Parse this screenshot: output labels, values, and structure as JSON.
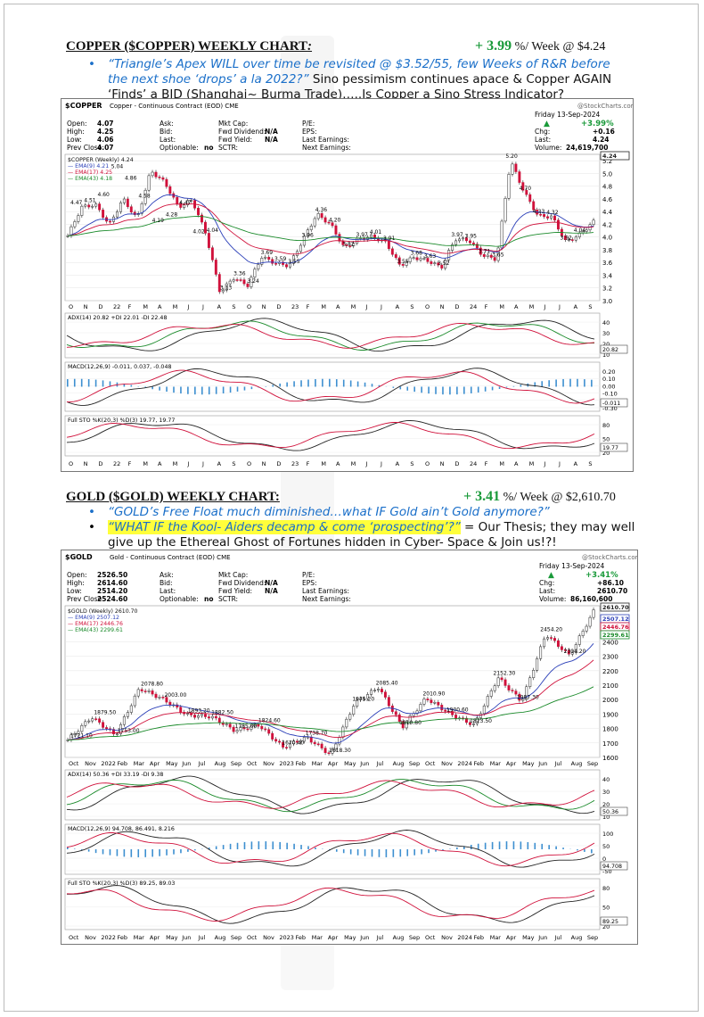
{
  "copper": {
    "heading": "COPPER ($COPPER) WEEKLY CHART",
    "heading_colon": ":",
    "perf_value": "+ 3.99",
    "perf_rest": " %/ Week @ $4.24",
    "bullet1_quote": "“Triangle’s Apex WILL over time be revisited @ $3.52/55, few Weeks of R&R before the next shoe ‘drops’ a la 2022?”",
    "bullet1_rest": "  Sino pessimism continues apace & Copper AGAIN ‘Finds’ a BID (Shanghai~ Burma Trade)…..Is Copper a Sino Stress Indicator?",
    "header": {
      "symbol": "$COPPER",
      "desc": "Copper - Continuous Contract (EOD)",
      "exchange": "CME",
      "brand": "@StockCharts.com",
      "date": "Friday   13-Sep-2024",
      "open_l": "Open:",
      "open_v": "4.07",
      "high_l": "High:",
      "high_v": "4.25",
      "low_l": "Low:",
      "low_v": "4.06",
      "prev_l": "Prev Close:",
      "prev_v": "4.07",
      "ask": "Ask:",
      "bid": "Bid:",
      "last": "Last:",
      "optionable": "Optionable:",
      "optionable_v": "no",
      "mktcap": "Mkt Cap:",
      "fwddiv": "Fwd Dividend:",
      "fwddiv_v": "N/A",
      "fwdyield": "Fwd Yield:",
      "fwdyield_v": "N/A",
      "sctr": "SCTR:",
      "pe": "P/E:",
      "eps": "EPS:",
      "lastearn": "Last Earnings:",
      "nextearn": "Next Earnings:",
      "pct": "+3.99%",
      "chg_l": "Chg:",
      "chg_v": "+0.16",
      "lastp_l": "Last:",
      "lastp_v": "4.24",
      "vol_l": "Volume:",
      "vol_v": "24,619,700"
    },
    "legend": [
      "$COPPER (Weekly) 4.24",
      "EMA(9) 4.21",
      "EMA(17) 4.25",
      "EMA(43) 4.18"
    ],
    "indicators": [
      {
        "label": "ADX(14) 20.82 +DI 22.01 -DI 22.48",
        "ticks": [
          "40",
          "30",
          "20",
          "10"
        ],
        "badge": "20.82"
      },
      {
        "label": "MACD(12,26,9) -0.011, 0.037, -0.048",
        "ticks": [
          "0.20",
          "0.10",
          "0.00",
          "-0.10",
          "-0.20",
          "-0.30"
        ],
        "badge": "-0.011"
      },
      {
        "label": "Full STO %K(20,3) %D(3) 19.77, 19.77",
        "ticks": [
          "80",
          "50",
          "20"
        ],
        "badge": "19.77"
      }
    ],
    "yticks": [
      "5.2",
      "5.0",
      "4.8",
      "4.6",
      "4.4",
      "4.2",
      "4.0",
      "3.8",
      "3.6",
      "3.4",
      "3.2",
      "3.0"
    ],
    "price_badge": "4.24",
    "xlabels": [
      "O",
      "N",
      "D",
      "22",
      "F",
      "M",
      "A",
      "M",
      "J",
      "J",
      "A",
      "S",
      "O",
      "N",
      "D",
      "23",
      "F",
      "M",
      "A",
      "M",
      "J",
      "J",
      "A",
      "S",
      "O",
      "N",
      "D",
      "24",
      "F",
      "M",
      "A",
      "M",
      "J",
      "J",
      "A",
      "S"
    ],
    "annotations": [
      "4.47",
      "4.51",
      "4.60",
      "5.04",
      "4.86",
      "4.58",
      "4.19",
      "4.28",
      "4.47",
      "4.02",
      "4.04",
      "3.13",
      "3.36",
      "3.24",
      "3.69",
      "3.59",
      "3.55",
      "3.96",
      "4.36",
      "4.20",
      "3.82",
      "3.97",
      "4.01",
      "3.91",
      "3.55",
      "3.68",
      "3.63",
      "3.52",
      "3.97",
      "3.95",
      "3.71",
      "3.65",
      "5.20",
      "4.70",
      "4.33",
      "4.32",
      "3.92",
      "4.04"
    ]
  },
  "gold": {
    "heading": "GOLD ($GOLD) WEEKLY CHART:",
    "perf_value": "+ 3.41",
    "perf_rest": " %/ Week @ $2,610.70",
    "bullet1_quote": "“GOLD’s Free Float much diminished…what IF Gold ain’t Gold anymore?”",
    "bullet2_quote": "“WHAT IF the Kool- Aiders decamp & come ‘prospecting’?”",
    "bullet2_rest": " = Our Thesis; they may well give up the Ethereal Ghost of Fortunes hidden in Cyber- Space & Join us!?!",
    "header": {
      "symbol": "$GOLD",
      "desc": "Gold - Continuous Contract (EOD)",
      "exchange": "CME",
      "brand": "@StockCharts.com",
      "date": "Friday   13-Sep-2024",
      "open_l": "Open:",
      "open_v": "2526.50",
      "high_l": "High:",
      "high_v": "2614.60",
      "low_l": "Low:",
      "low_v": "2514.20",
      "prev_l": "Prev Close:",
      "prev_v": "2524.60",
      "ask": "Ask:",
      "bid": "Bid:",
      "last": "Last:",
      "optionable": "Optionable:",
      "optionable_v": "no",
      "mktcap": "Mkt Cap:",
      "fwddiv": "Fwd Dividend:",
      "fwddiv_v": "N/A",
      "fwdyield": "Fwd Yield:",
      "fwdyield_v": "N/A",
      "sctr": "SCTR:",
      "pe": "P/E:",
      "eps": "EPS:",
      "lastearn": "Last Earnings:",
      "nextearn": "Next Earnings:",
      "pct": "+3.41%",
      "chg_l": "Chg:",
      "chg_v": "+86.10",
      "lastp_l": "Last:",
      "lastp_v": "2610.70",
      "vol_l": "Volume:",
      "vol_v": "86,160,600"
    },
    "legend": [
      "$GOLD (Weekly) 2610.70",
      "EMA(9) 2507.12",
      "EMA(17) 2446.76",
      "EMA(43) 2299.61"
    ],
    "indicators": [
      {
        "label": "ADX(14) 50.36 +DI 33.19 -DI 9.38",
        "ticks": [
          "40",
          "30",
          "20",
          "10"
        ],
        "badge": "50.36"
      },
      {
        "label": "MACD(12,26,9) 94.708, 86.491, 8.216",
        "ticks": [
          "100",
          "50",
          "0",
          "-50"
        ],
        "badge": "94.708"
      },
      {
        "label": "Full STO %K(20,3) %D(3) 89.25, 89.03",
        "ticks": [
          "80",
          "50",
          "20"
        ],
        "badge": "89.25"
      }
    ],
    "yticks": [
      "2400",
      "2300",
      "2200",
      "2100",
      "2000",
      "1900",
      "1800",
      "1700",
      "1600"
    ],
    "price_badges": [
      "2610.70",
      "2507.12",
      "2446.76",
      "2299.61"
    ],
    "xlabels": [
      "Oct",
      "Nov",
      "2022",
      "Feb",
      "Mar",
      "Apr",
      "May",
      "Jun",
      "Jul",
      "Aug",
      "Sep",
      "Oct",
      "Nov",
      "2023",
      "Feb",
      "Mar",
      "Apr",
      "May",
      "Jun",
      "Jul",
      "Aug",
      "Sep",
      "Oct",
      "Nov",
      "2024",
      "Feb",
      "Mar",
      "Apr",
      "May",
      "Jun",
      "Jul",
      "Aug",
      "Sep"
    ],
    "annotations": [
      "1721.10",
      "1879.50",
      "1753.00",
      "2078.80",
      "2003.00",
      "1893.20",
      "1882.50",
      "1785.00",
      "1824.60",
      "1670.40",
      "1738.70",
      "1618.30",
      "1975.20",
      "2085.40",
      "1810.80",
      "2010.90",
      "1900.60",
      "1823.50",
      "2152.30",
      "1987.30",
      "2454.20",
      "2304.20"
    ]
  },
  "chart_data": [
    {
      "type": "line",
      "title": "$COPPER Copper - Continuous Contract (EOD) CME",
      "ylim": [
        3.0,
        5.3
      ],
      "series": [
        {
          "name": "$COPPER (Weekly) 4.24",
          "values": [
            4.02,
            4.47,
            4.51,
            4.19,
            4.6,
            4.28,
            5.04,
            4.86,
            4.47,
            4.58,
            4.04,
            3.13,
            3.36,
            3.24,
            3.69,
            3.59,
            3.55,
            3.96,
            4.36,
            4.2,
            3.82,
            3.97,
            4.01,
            3.91,
            3.55,
            3.68,
            3.63,
            3.52,
            3.97,
            3.95,
            3.71,
            3.65,
            5.2,
            4.7,
            4.33,
            4.32,
            3.92,
            4.04,
            4.24
          ]
        }
      ]
    },
    {
      "type": "line",
      "title": "$GOLD Gold - Continuous Contract (EOD) CME",
      "ylim": [
        1600,
        2650
      ],
      "series": [
        {
          "name": "$GOLD (Weekly) 2610.70",
          "values": [
            1721.1,
            1879.5,
            1753.0,
            2078.8,
            2003.0,
            1893.2,
            1882.5,
            1785.0,
            1824.6,
            1670.4,
            1738.7,
            1618.3,
            1975.2,
            2085.4,
            1810.8,
            2010.9,
            1900.6,
            1823.5,
            2152.3,
            1987.3,
            2454.2,
            2304.2,
            2610.7
          ]
        }
      ]
    }
  ]
}
